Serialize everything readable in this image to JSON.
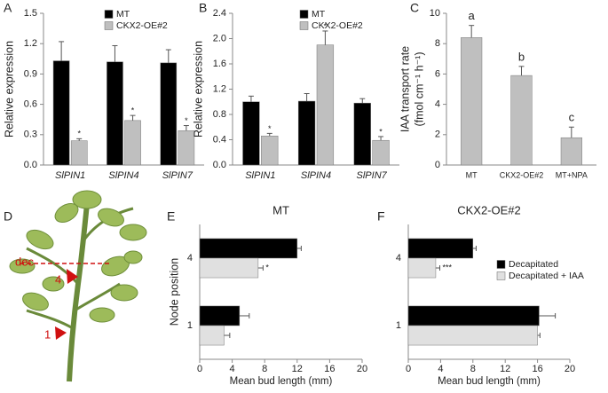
{
  "chart_data": [
    {
      "type": "bar",
      "panel": "A",
      "ylabel": "Relative expression",
      "categories": [
        "SlPIN1",
        "SlPIN4",
        "SlPIN7"
      ],
      "italic_categories": true,
      "series": [
        {
          "name": "MT",
          "color": "#000000",
          "values": [
            1.03,
            1.02,
            1.01
          ],
          "errors": [
            0.19,
            0.16,
            0.13
          ],
          "annotations": [
            null,
            null,
            null
          ]
        },
        {
          "name": "CKX2-OE#2",
          "color": "#bfbfbf",
          "values": [
            0.24,
            0.44,
            0.34
          ],
          "errors": [
            0.02,
            0.05,
            0.05
          ],
          "annotations": [
            "*",
            "*",
            "*"
          ]
        }
      ],
      "ylim": [
        0,
        1.5
      ],
      "yticks": [
        {
          "value": 0,
          "label": "0.0"
        },
        0.3,
        0.6,
        0.9,
        1.2,
        1.5
      ],
      "legend": "upper right"
    },
    {
      "type": "bar",
      "panel": "B",
      "ylabel": "Relative expression",
      "categories": [
        "SlPIN1",
        "SlPIN4",
        "SlPIN7"
      ],
      "italic_categories": true,
      "series": [
        {
          "name": "MT",
          "color": "#000000",
          "values": [
            1.0,
            1.01,
            0.98
          ],
          "errors": [
            0.09,
            0.12,
            0.07
          ],
          "annotations": [
            null,
            null,
            null
          ]
        },
        {
          "name": "CKX2-OE#2",
          "color": "#bfbfbf",
          "values": [
            0.46,
            1.9,
            0.39
          ],
          "errors": [
            0.04,
            0.22,
            0.06
          ],
          "annotations": [
            "*",
            "*",
            "*"
          ]
        }
      ],
      "ylim": [
        0,
        2.4
      ],
      "yticks": [
        {
          "value": 0,
          "label": "0.0"
        },
        0.4,
        0.8,
        1.2,
        1.6,
        {
          "value": 2,
          "label": "2.0"
        },
        2.4
      ],
      "legend": "upper right"
    },
    {
      "type": "bar",
      "panel": "C",
      "ylabel": [
        "IAA transport rate",
        "(fmol cm⁻¹ h⁻¹)"
      ],
      "categories": [
        "MT",
        "CKX2-OE#2",
        "MT+NPA"
      ],
      "series": [
        {
          "color": "#bfbfbf",
          "values": [
            8.4,
            5.9,
            1.8
          ],
          "errors": [
            0.8,
            0.6,
            0.7
          ],
          "annotations": [
            "a",
            "b",
            "c"
          ]
        }
      ],
      "ylim": [
        0,
        10
      ],
      "yticks": [
        0,
        2,
        4,
        6,
        8,
        10
      ]
    },
    {
      "type": "barh",
      "panel": "E",
      "title": "MT",
      "xlabel": "Mean bud length (mm)",
      "ylabel": "Node position",
      "categories": [
        "4",
        "1"
      ],
      "series": [
        {
          "name": "Decapitated",
          "color": "#000000",
          "values": [
            12.0,
            4.9
          ],
          "errors": [
            0.5,
            1.2
          ],
          "annotations": [
            null,
            null
          ]
        },
        {
          "name": "Decapitated + IAA",
          "color": "#e0e0e0",
          "values": [
            7.2,
            3.0
          ],
          "errors": [
            0.6,
            0.7
          ],
          "annotations": [
            "*",
            null
          ]
        }
      ],
      "xlim": [
        0,
        20
      ],
      "xticks": [
        0,
        4,
        8,
        12,
        16,
        20
      ]
    },
    {
      "type": "barh",
      "panel": "F",
      "title": "CKX2-OE#2",
      "xlabel": "Mean bud length (mm)",
      "categories": [
        "4",
        "1"
      ],
      "series": [
        {
          "name": "Decapitated",
          "color": "#000000",
          "values": [
            8.0,
            16.2
          ],
          "errors": [
            0.4,
            2.0
          ],
          "annotations": [
            null,
            null
          ]
        },
        {
          "name": "Decapitated + IAA",
          "color": "#e0e0e0",
          "values": [
            3.4,
            16.0
          ],
          "errors": [
            0.5,
            0.3
          ],
          "annotations": [
            "***",
            null
          ]
        }
      ],
      "xlim": [
        0,
        20
      ],
      "xticks": [
        0,
        4,
        8,
        12,
        16,
        20
      ],
      "legend": "center right"
    }
  ],
  "illustration": {
    "panel": "D",
    "cut_label": "dec",
    "node_labels": [
      "4",
      "1"
    ]
  }
}
